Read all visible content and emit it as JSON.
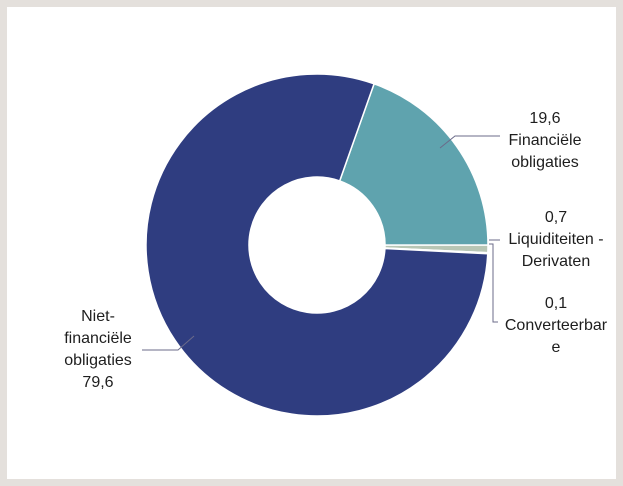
{
  "chart_data": {
    "type": "pie",
    "variant": "donut",
    "unit": "",
    "slices": [
      {
        "name": "Financiële obligaties",
        "value": 19.6,
        "value_label": "19,6",
        "label_lines": [
          "19,6",
          "Financiële",
          "obligaties"
        ],
        "color": "#5fa3ae"
      },
      {
        "name": "Liquiditeiten - Derivaten",
        "value": 0.7,
        "value_label": "0,7",
        "label_lines": [
          "0,7",
          "Liquiditeiten -",
          "Derivaten"
        ],
        "color": "#b8c6b5"
      },
      {
        "name": "Converteerbare",
        "value": 0.1,
        "value_label": "0,1",
        "label_lines": [
          "0,1",
          "Converteerbar",
          "e"
        ],
        "color": "#6c7f8c"
      },
      {
        "name": "Niet-financiële obligaties",
        "value": 79.6,
        "value_label": "79,6",
        "label_lines": [
          "Niet-",
          "financiële",
          "obligaties",
          "79,6"
        ],
        "color": "#2f3d80"
      }
    ],
    "legend": "none"
  }
}
